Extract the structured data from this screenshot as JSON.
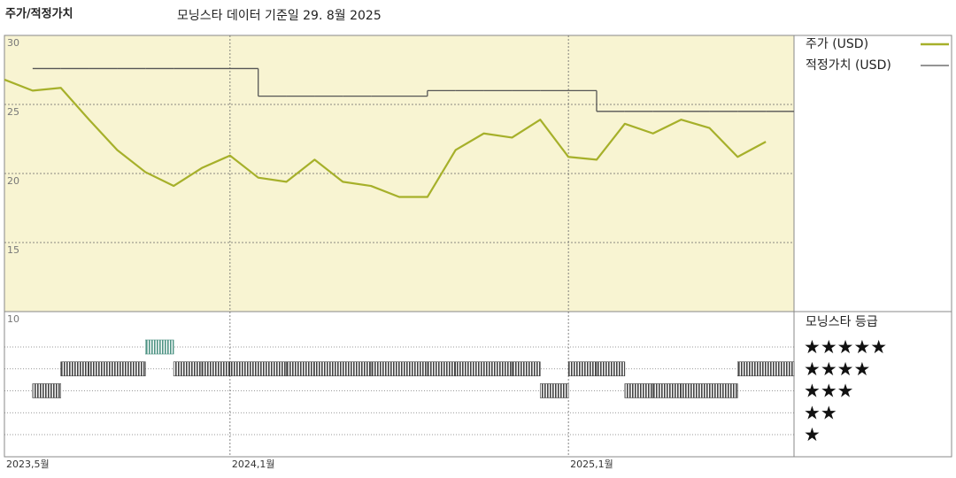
{
  "chart_data": {
    "type": "line",
    "title": "주가/적정가치",
    "subtitle": "모닝스타 데이터 기준일 29. 8월 2025",
    "x": [
      "2023-05",
      "2023-06",
      "2023-07",
      "2023-08",
      "2023-09",
      "2023-10",
      "2023-11",
      "2023-12",
      "2024-01",
      "2024-02",
      "2024-03",
      "2024-04",
      "2024-05",
      "2024-06",
      "2024-07",
      "2024-08",
      "2024-09",
      "2024-10",
      "2024-11",
      "2024-12",
      "2025-01",
      "2025-02",
      "2025-03",
      "2025-04",
      "2025-05",
      "2025-06",
      "2025-07",
      "2025-08"
    ],
    "xticks": [
      {
        "value": "2023-05",
        "label": "2023,5월"
      },
      {
        "value": "2024-01",
        "label": "2024,1월"
      },
      {
        "value": "2025-01",
        "label": "2025,1월"
      }
    ],
    "ylim": [
      10,
      30
    ],
    "yticks": [
      10,
      15,
      20,
      25,
      30
    ],
    "grid": true,
    "series": [
      {
        "name": "주가 (USD)",
        "color": "#a6b02a",
        "values": [
          26.8,
          26.0,
          26.2,
          23.9,
          21.7,
          20.1,
          19.1,
          20.4,
          21.3,
          19.7,
          19.4,
          21.0,
          19.4,
          19.1,
          18.3,
          18.3,
          21.7,
          22.9,
          22.6,
          23.9,
          21.2,
          21.0,
          23.6,
          22.9,
          23.9,
          23.3,
          21.2,
          22.3
        ]
      },
      {
        "name": "적정가치 (USD)",
        "color": "#555555",
        "step": true,
        "values": [
          null,
          27.6,
          27.6,
          27.6,
          27.6,
          27.6,
          27.6,
          27.6,
          27.6,
          25.6,
          25.6,
          25.6,
          25.6,
          25.6,
          25.6,
          26.0,
          26.0,
          26.0,
          26.0,
          26.0,
          26.0,
          24.5,
          24.5,
          24.5,
          24.5,
          24.5,
          24.5,
          24.5
        ]
      }
    ],
    "rating": {
      "title": "모닝스타 등급",
      "levels": [
        5,
        4,
        3,
        2,
        1
      ],
      "level_labels": [
        "★★★★★",
        "★★★★",
        "★★★",
        "★★",
        "★"
      ],
      "level_colors": [
        "#4f9484",
        "#444444",
        "#444444",
        "#444444",
        "#444444"
      ],
      "values": [
        null,
        3,
        4,
        4,
        4,
        5,
        4,
        4,
        4,
        4,
        4,
        4,
        4,
        4,
        4,
        4,
        4,
        4,
        4,
        3,
        4,
        4,
        3,
        3,
        3,
        3,
        4,
        4
      ]
    }
  }
}
